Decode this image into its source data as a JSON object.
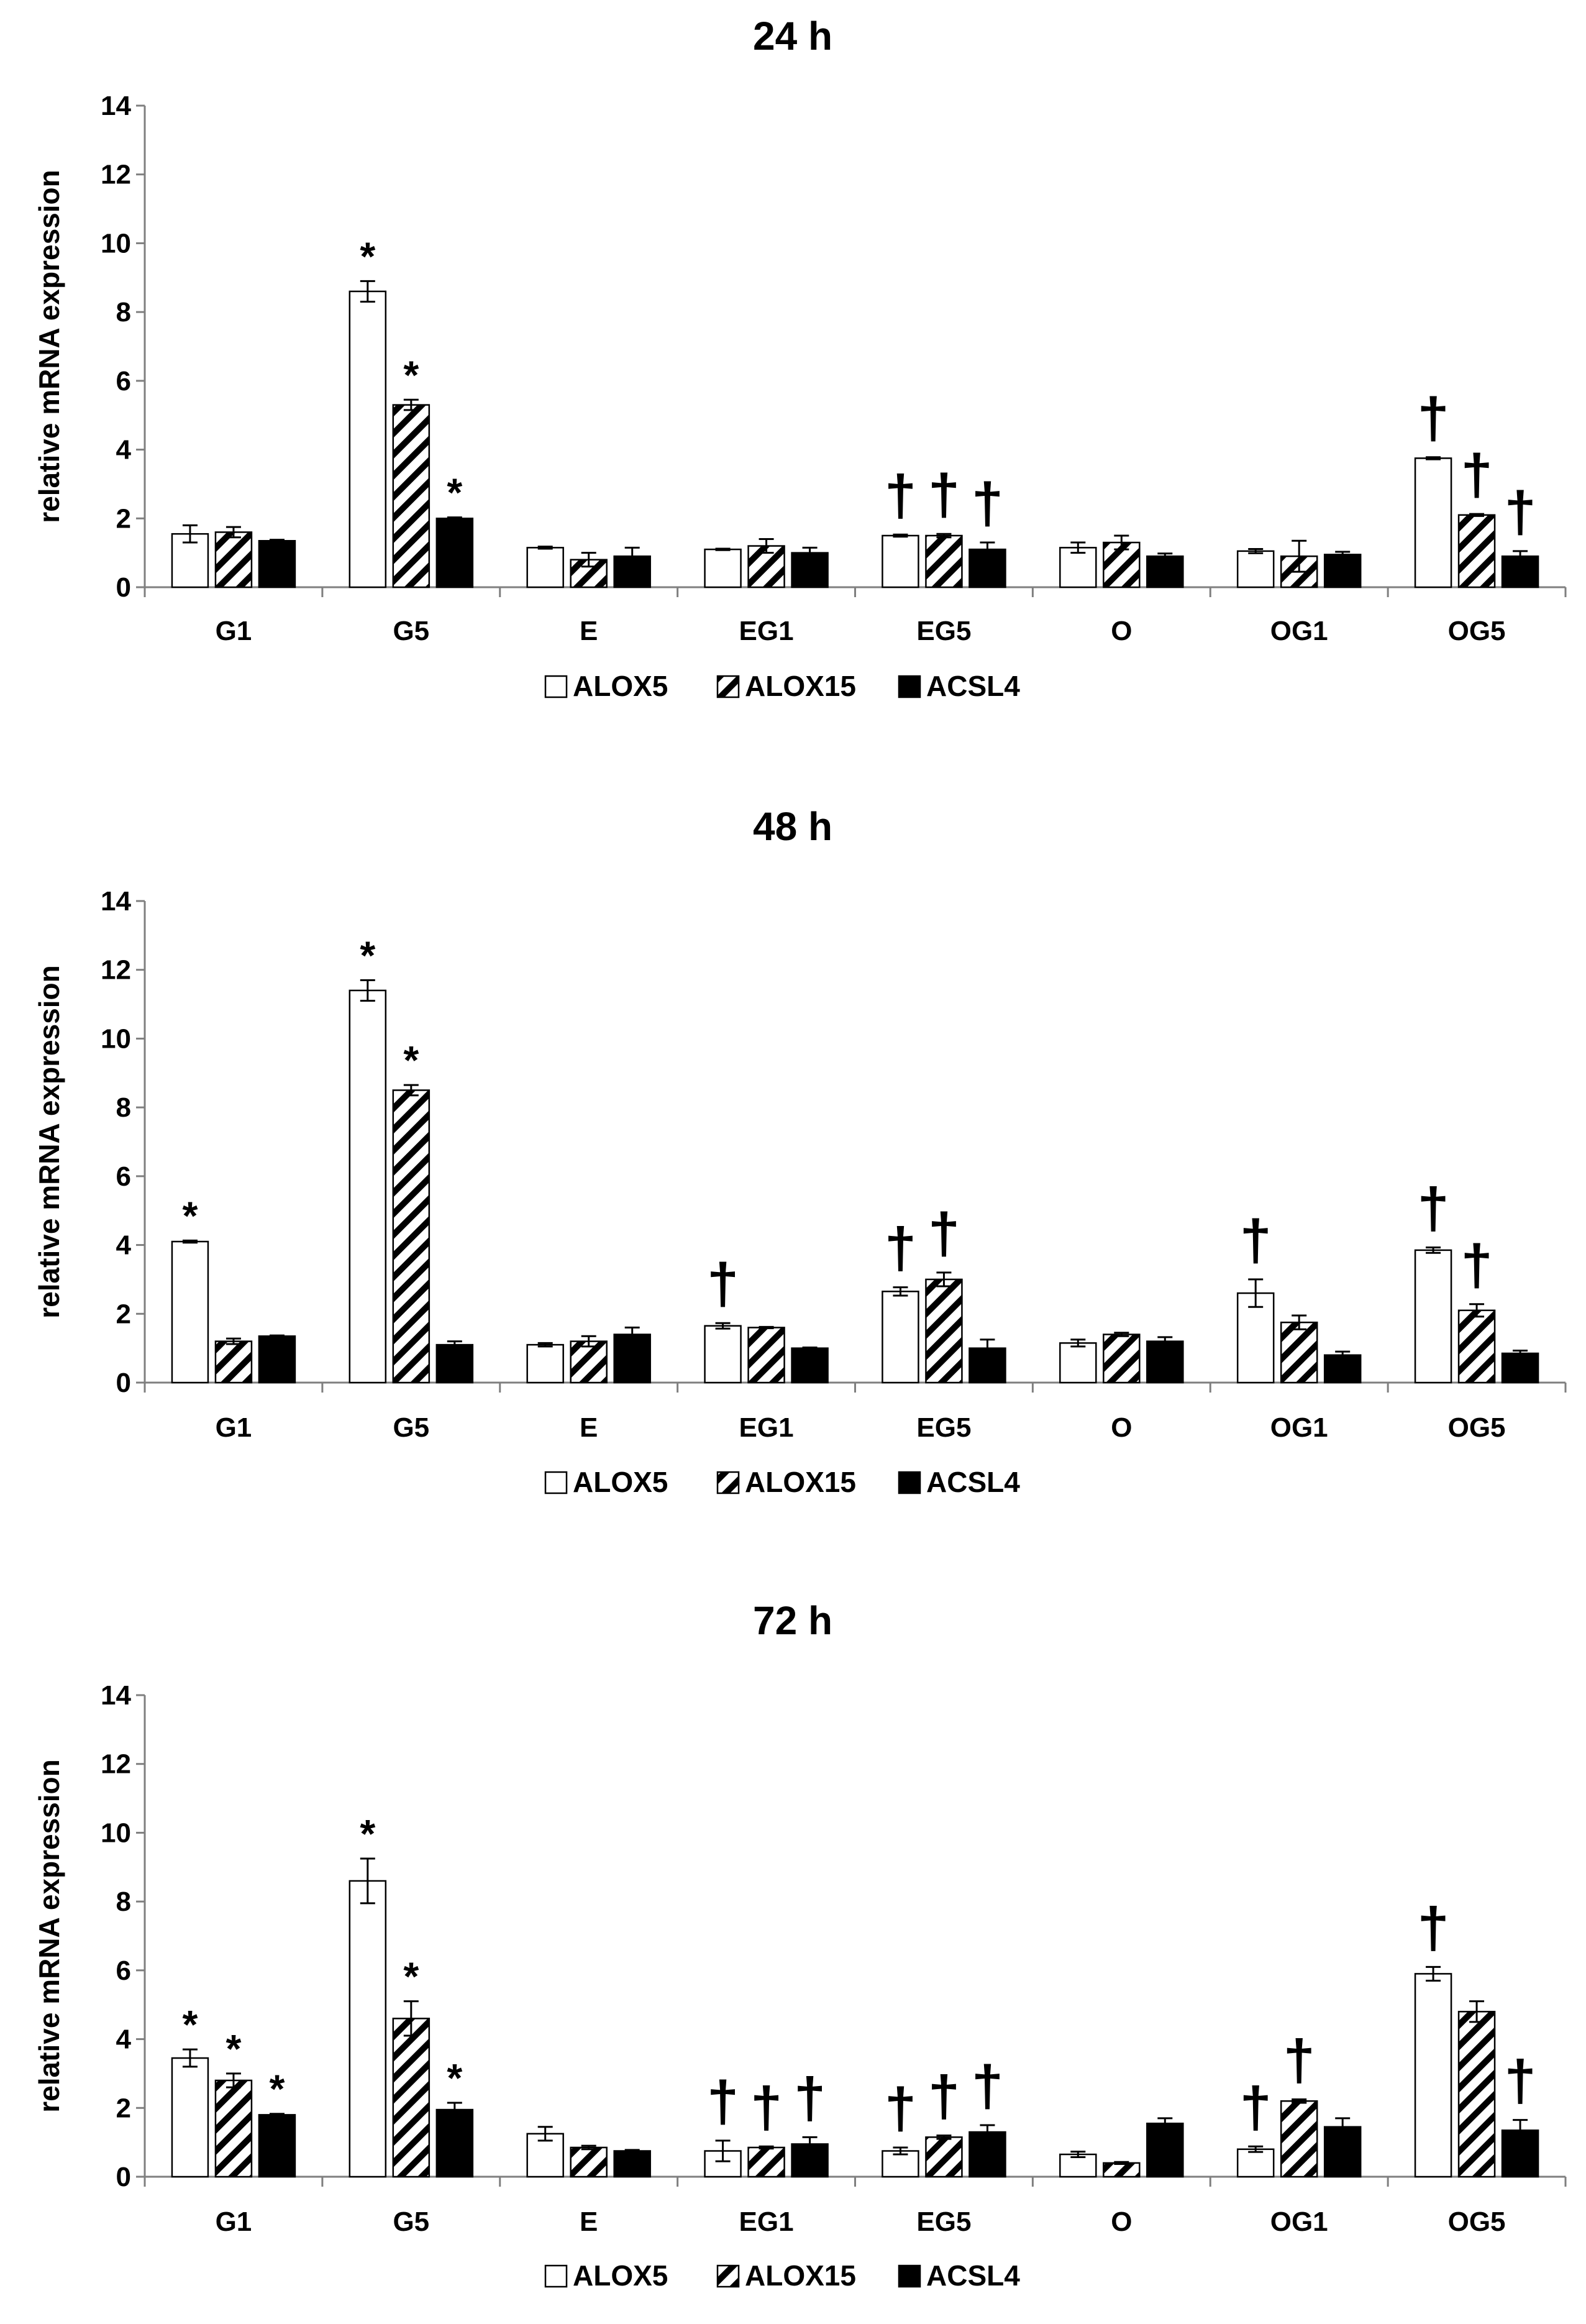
{
  "chart_data": [
    {
      "type": "bar",
      "title": "24 h",
      "ylabel": "relative mRNA expression",
      "xlabel": "",
      "ylim": [
        0,
        14
      ],
      "yticks": [
        0,
        2,
        4,
        6,
        8,
        10,
        12,
        14
      ],
      "categories": [
        "G1",
        "G5",
        "E",
        "EG1",
        "EG5",
        "O",
        "OG1",
        "OG5"
      ],
      "legend": [
        "ALOX5",
        "ALOX15",
        "ACSL4"
      ],
      "series": [
        {
          "name": "ALOX5",
          "fill": "white",
          "values": [
            1.55,
            8.6,
            1.15,
            1.1,
            1.5,
            1.15,
            1.05,
            3.75
          ],
          "errors": [
            0.25,
            0.3,
            0.03,
            0.02,
            0.03,
            0.15,
            0.06,
            0.03
          ],
          "marks": [
            "",
            "*",
            "",
            "",
            "†",
            "",
            "",
            "†"
          ]
        },
        {
          "name": "ALOX15",
          "fill": "hatch",
          "values": [
            1.6,
            5.3,
            0.8,
            1.2,
            1.5,
            1.3,
            0.9,
            2.1
          ],
          "errors": [
            0.15,
            0.15,
            0.2,
            0.2,
            0.05,
            0.2,
            0.45,
            0.03
          ],
          "marks": [
            "",
            "*",
            "",
            "",
            "†",
            "",
            "",
            "†"
          ]
        },
        {
          "name": "ACSL4",
          "fill": "black",
          "values": [
            1.35,
            2.0,
            0.9,
            1.0,
            1.1,
            0.9,
            0.95,
            0.9
          ],
          "errors": [
            0.03,
            0.03,
            0.25,
            0.15,
            0.2,
            0.08,
            0.08,
            0.15
          ],
          "marks": [
            "",
            "*",
            "",
            "",
            "†",
            "",
            "",
            "†"
          ]
        }
      ]
    },
    {
      "type": "bar",
      "title": "48 h",
      "ylabel": "relative mRNA expression",
      "xlabel": "",
      "ylim": [
        0,
        14
      ],
      "yticks": [
        0,
        2,
        4,
        6,
        8,
        10,
        12,
        14
      ],
      "categories": [
        "G1",
        "G5",
        "E",
        "EG1",
        "EG5",
        "O",
        "OG1",
        "OG5"
      ],
      "legend": [
        "ALOX5",
        "ALOX15",
        "ACSL4"
      ],
      "series": [
        {
          "name": "ALOX5",
          "fill": "white",
          "values": [
            4.1,
            11.4,
            1.1,
            1.65,
            2.65,
            1.15,
            2.6,
            3.85
          ],
          "errors": [
            0.03,
            0.3,
            0.05,
            0.08,
            0.12,
            0.1,
            0.4,
            0.08
          ],
          "marks": [
            "*",
            "*",
            "",
            "†",
            "†",
            "",
            "†",
            "†"
          ]
        },
        {
          "name": "ALOX15",
          "fill": "hatch",
          "values": [
            1.2,
            8.5,
            1.2,
            1.6,
            3.0,
            1.4,
            1.75,
            2.1
          ],
          "errors": [
            0.08,
            0.15,
            0.15,
            0.02,
            0.2,
            0.05,
            0.2,
            0.18
          ],
          "marks": [
            "",
            "*",
            "",
            "",
            "†",
            "",
            "",
            "†"
          ]
        },
        {
          "name": "ACSL4",
          "fill": "black",
          "values": [
            1.35,
            1.1,
            1.4,
            1.0,
            1.0,
            1.2,
            0.8,
            0.85
          ],
          "errors": [
            0.02,
            0.1,
            0.2,
            0.02,
            0.25,
            0.12,
            0.1,
            0.08
          ],
          "marks": [
            "",
            "",
            "",
            "",
            "",
            "",
            "",
            ""
          ]
        }
      ]
    },
    {
      "type": "bar",
      "title": "72 h",
      "ylabel": "relative mRNA expression",
      "xlabel": "",
      "ylim": [
        0,
        14
      ],
      "yticks": [
        0,
        2,
        4,
        6,
        8,
        10,
        12,
        14
      ],
      "categories": [
        "G1",
        "G5",
        "E",
        "EG1",
        "EG5",
        "O",
        "OG1",
        "OG5"
      ],
      "legend": [
        "ALOX5",
        "ALOX15",
        "ACSL4"
      ],
      "series": [
        {
          "name": "ALOX5",
          "fill": "white",
          "values": [
            3.45,
            8.6,
            1.25,
            0.75,
            0.75,
            0.65,
            0.8,
            5.9
          ],
          "errors": [
            0.25,
            0.65,
            0.2,
            0.3,
            0.1,
            0.08,
            0.08,
            0.2
          ],
          "marks": [
            "*",
            "*",
            "",
            "†",
            "†",
            "",
            "†",
            "†"
          ]
        },
        {
          "name": "ALOX15",
          "fill": "hatch",
          "values": [
            2.8,
            4.6,
            0.85,
            0.85,
            1.15,
            0.4,
            2.2,
            4.8
          ],
          "errors": [
            0.2,
            0.5,
            0.05,
            0.03,
            0.05,
            0.03,
            0.05,
            0.3
          ],
          "marks": [
            "*",
            "*",
            "",
            "†",
            "†",
            "",
            "†",
            ""
          ]
        },
        {
          "name": "ACSL4",
          "fill": "black",
          "values": [
            1.8,
            1.95,
            0.75,
            0.95,
            1.3,
            1.55,
            1.45,
            1.35
          ],
          "errors": [
            0.03,
            0.2,
            0.03,
            0.2,
            0.2,
            0.15,
            0.25,
            0.3
          ],
          "marks": [
            "*",
            "*",
            "",
            "†",
            "†",
            "",
            "",
            "†"
          ]
        }
      ]
    }
  ]
}
